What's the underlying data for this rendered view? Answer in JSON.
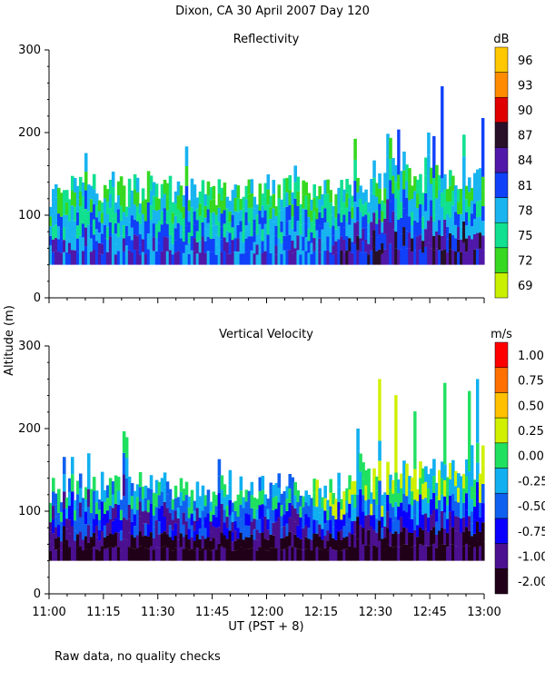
{
  "title": "Dixon, CA 30 April 2007  Day 120",
  "ylabel": "Altitude (m)",
  "xlabel": "UT  (PST + 8)",
  "footnote": "Raw data, no quality checks",
  "colors": {
    "reflectivity": [
      "#c8f000",
      "#36d820",
      "#10e090",
      "#18b4f0",
      "#1040f8",
      "#5018a8",
      "#281028",
      "#e00000",
      "#ff8c00",
      "#ffc800"
    ],
    "velocity": [
      "#200018",
      "#4a1090",
      "#0a00ff",
      "#1060f0",
      "#10b0f0",
      "#20e060",
      "#d0f000",
      "#ffc000",
      "#ff7000",
      "#ff0000"
    ]
  },
  "chart_data": [
    {
      "type": "heatmap",
      "title": "Reflectivity",
      "xlabel": "UT  (PST + 8)",
      "ylabel": "Altitude (m)",
      "ylim": [
        0,
        300
      ],
      "yticks": [
        0,
        100,
        200,
        300
      ],
      "xlim": [
        "11:00",
        "13:00"
      ],
      "xticks": [
        "11:00",
        "11:15",
        "11:30",
        "11:45",
        "12:00",
        "12:15",
        "12:30",
        "12:45",
        "13:00"
      ],
      "colorbar": {
        "unit": "dB",
        "labels": [
          "69",
          "72",
          "75",
          "78",
          "81",
          "84",
          "87",
          "90",
          "93",
          "96"
        ]
      },
      "data_altitude_range": [
        40,
        260
      ]
    },
    {
      "type": "heatmap",
      "title": "Vertical Velocity",
      "xlabel": "UT  (PST + 8)",
      "ylabel": "Altitude (m)",
      "ylim": [
        0,
        300
      ],
      "yticks": [
        0,
        100,
        200,
        300
      ],
      "xlim": [
        "11:00",
        "13:00"
      ],
      "xticks": [
        "11:00",
        "11:15",
        "11:30",
        "11:45",
        "12:00",
        "12:15",
        "12:30",
        "12:45",
        "13:00"
      ],
      "colorbar": {
        "unit": "m/s",
        "labels": [
          "-2.00",
          "-1.00",
          "-0.75",
          "-0.50",
          "-0.25",
          "0.00",
          "0.25",
          "0.50",
          "0.75",
          "1.00"
        ]
      },
      "data_altitude_range": [
        40,
        260
      ]
    }
  ]
}
